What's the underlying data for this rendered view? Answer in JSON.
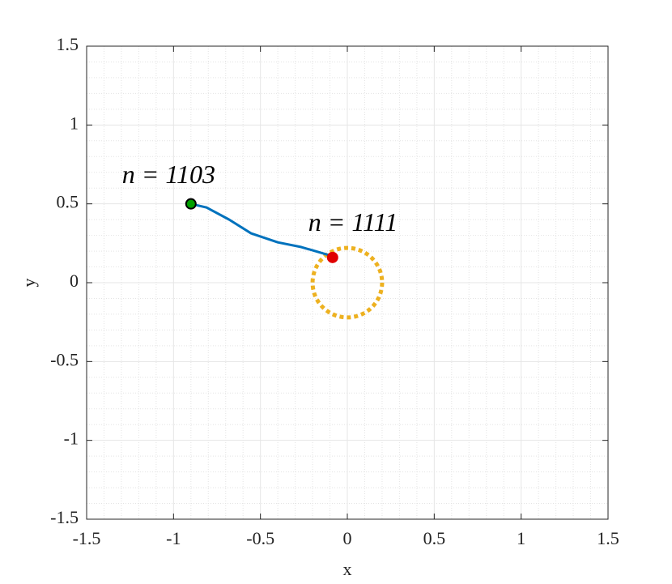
{
  "chart_data": {
    "type": "line",
    "x_label": "x",
    "y_label": "y",
    "xlim": [
      -1.5,
      1.5
    ],
    "ylim": [
      -1.5,
      1.5
    ],
    "xticks": [
      -1.5,
      -1,
      -0.5,
      0,
      0.5,
      1,
      1.5
    ],
    "yticks": [
      -1.5,
      -1,
      -0.5,
      0,
      0.5,
      1,
      1.5
    ],
    "grid": true,
    "minor_grid": true,
    "series": [
      {
        "color": "#0072bd",
        "x": [
          -0.9,
          -0.81,
          -0.68,
          -0.554,
          -0.4,
          -0.265,
          -0.088
        ],
        "values": [
          0.5,
          0.477,
          0.4,
          0.313,
          0.256,
          0.226,
          0.169
        ]
      }
    ],
    "target": {
      "x": 0,
      "y": 0,
      "radius": 0.2,
      "color": "#edb120"
    },
    "points": [
      {
        "x": -0.9,
        "y": 0.5,
        "color": "#00a000",
        "label": "n = 1103"
      },
      {
        "x": -0.085,
        "y": 0.16,
        "color": "#e00000",
        "label": "n = 1111"
      }
    ]
  }
}
